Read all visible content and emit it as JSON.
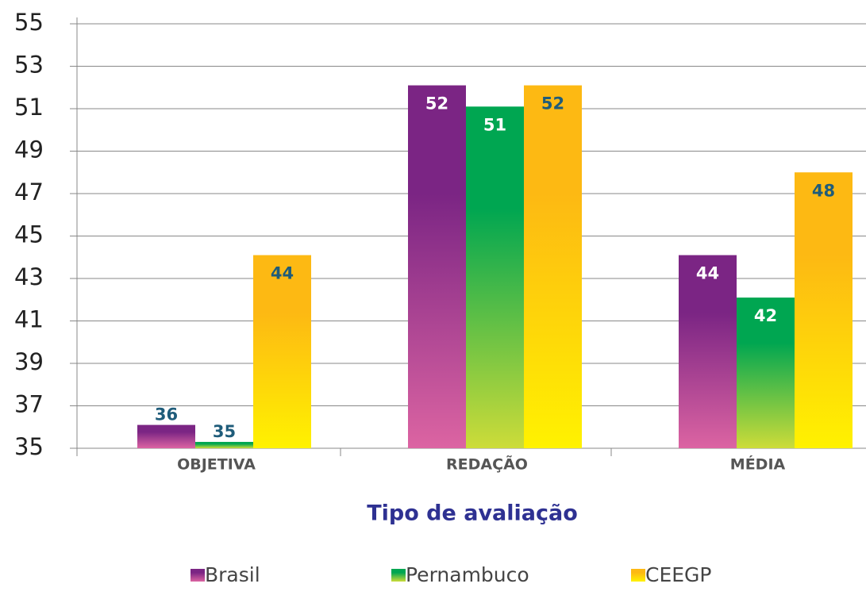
{
  "chart_data": {
    "type": "bar",
    "x_label": "Tipo de avaliação",
    "categories": [
      "OBJETIVA",
      "REDAÇÃO",
      "MÉDIA"
    ],
    "series": [
      {
        "name": "Brasil",
        "color": "#7b2584",
        "gradient_end": "#dc64a2",
        "label_color": "#ffffff",
        "values": [
          36.1,
          52.1,
          44.1
        ],
        "value_labels": [
          "36",
          "52",
          "44"
        ]
      },
      {
        "name": "Pernambuco",
        "color": "#00a651",
        "gradient_end": "#cddc39",
        "label_color": "#ffffff",
        "values": [
          35.3,
          51.1,
          42.1
        ],
        "value_labels": [
          "35",
          "51",
          "42"
        ]
      },
      {
        "name": "CEEGP",
        "color": "#fdb913",
        "gradient_end": "#fff200",
        "label_color": "#1f5c7a",
        "values": [
          44.1,
          52.1,
          48
        ],
        "value_labels": [
          "44",
          "52",
          "48"
        ]
      }
    ],
    "ylim": [
      35,
      55
    ],
    "yticks": [
      35,
      37,
      39,
      41,
      43,
      45,
      47,
      49,
      51,
      53,
      55
    ],
    "grid": true,
    "legend": "bottom"
  }
}
